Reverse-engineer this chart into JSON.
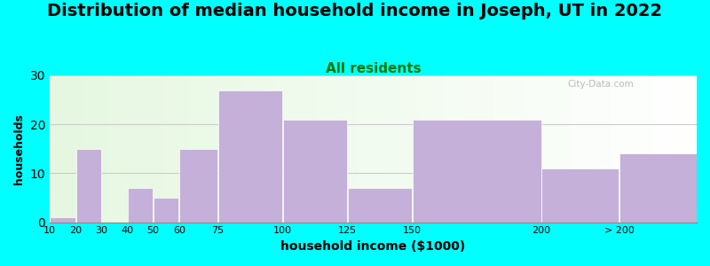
{
  "title": "Distribution of median household income in Joseph, UT in 2022",
  "subtitle": "All residents",
  "xlabel": "household income ($1000)",
  "ylabel": "households",
  "background_color": "#00FFFF",
  "bar_color": "#C4B0D8",
  "ylim": [
    0,
    30
  ],
  "yticks": [
    0,
    10,
    20,
    30
  ],
  "bin_edges": [
    10,
    20,
    30,
    40,
    50,
    60,
    75,
    100,
    125,
    150,
    200,
    230,
    260
  ],
  "bar_heights": [
    1,
    15,
    0,
    7,
    5,
    15,
    27,
    21,
    7,
    21,
    11,
    14
  ],
  "xtick_positions": [
    10,
    20,
    30,
    40,
    50,
    60,
    75,
    100,
    125,
    150,
    200,
    230
  ],
  "xtick_labels": [
    "10",
    "20",
    "30",
    "40",
    "50",
    "60",
    "75",
    "100",
    "125",
    "150",
    "200",
    "> 200"
  ],
  "title_fontsize": 14,
  "subtitle_fontsize": 11,
  "subtitle_color": "#007700",
  "grid_color": "#cccccc",
  "watermark": "City-Data.com"
}
